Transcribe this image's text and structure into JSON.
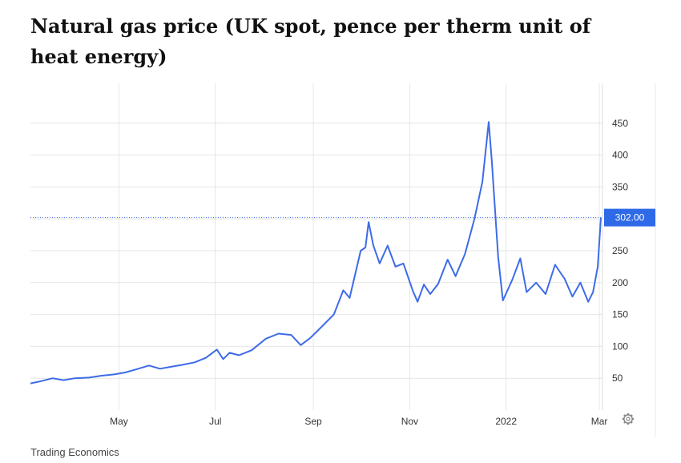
{
  "title": "Natural gas price (UK spot, pence per therm unit of heat energy)",
  "source": "Trading Economics",
  "colors": {
    "line": "#3d6be8",
    "last_label_bg": "#2e6ae8",
    "grid": "#e6e6e6",
    "ref_line": "#3d6be8"
  },
  "icons": {
    "settings": "gear-icon"
  },
  "chart_data": {
    "type": "line",
    "title": "Natural gas price (UK spot, pence per therm unit of heat energy)",
    "xlabel": "",
    "ylabel": "",
    "x_tick_labels": [
      "May",
      "Jul",
      "Sep",
      "Nov",
      "2022",
      "Mar"
    ],
    "y_ticks": [
      50,
      100,
      150,
      200,
      250,
      300,
      350,
      400,
      450
    ],
    "ylim": [
      0,
      500
    ],
    "xlim": [
      "2021-03-06",
      "2022-03-03"
    ],
    "grid": true,
    "axis_position": "right",
    "last_value": 302.0,
    "last_value_label": "302.00",
    "series": [
      {
        "points": [
          [
            "2021-03-06",
            42
          ],
          [
            "2021-03-12",
            45
          ],
          [
            "2021-03-20",
            50
          ],
          [
            "2021-03-27",
            47
          ],
          [
            "2021-04-03",
            50
          ],
          [
            "2021-04-12",
            51
          ],
          [
            "2021-04-20",
            54
          ],
          [
            "2021-04-28",
            56
          ],
          [
            "2021-05-05",
            59
          ],
          [
            "2021-05-12",
            64
          ],
          [
            "2021-05-20",
            70
          ],
          [
            "2021-05-27",
            65
          ],
          [
            "2021-06-03",
            68
          ],
          [
            "2021-06-10",
            71
          ],
          [
            "2021-06-18",
            75
          ],
          [
            "2021-06-25",
            82
          ],
          [
            "2021-07-02",
            95
          ],
          [
            "2021-07-06",
            80
          ],
          [
            "2021-07-10",
            90
          ],
          [
            "2021-07-16",
            86
          ],
          [
            "2021-07-24",
            94
          ],
          [
            "2021-08-02",
            112
          ],
          [
            "2021-08-10",
            120
          ],
          [
            "2021-08-18",
            118
          ],
          [
            "2021-08-24",
            102
          ],
          [
            "2021-08-30",
            113
          ],
          [
            "2021-09-06",
            130
          ],
          [
            "2021-09-14",
            150
          ],
          [
            "2021-09-20",
            188
          ],
          [
            "2021-09-24",
            176
          ],
          [
            "2021-10-01",
            250
          ],
          [
            "2021-10-04",
            255
          ],
          [
            "2021-10-06",
            295
          ],
          [
            "2021-10-09",
            258
          ],
          [
            "2021-10-13",
            230
          ],
          [
            "2021-10-18",
            258
          ],
          [
            "2021-10-23",
            225
          ],
          [
            "2021-10-28",
            230
          ],
          [
            "2021-11-03",
            187
          ],
          [
            "2021-11-06",
            170
          ],
          [
            "2021-11-10",
            197
          ],
          [
            "2021-11-14",
            182
          ],
          [
            "2021-11-19",
            198
          ],
          [
            "2021-11-25",
            236
          ],
          [
            "2021-11-30",
            210
          ],
          [
            "2021-12-06",
            245
          ],
          [
            "2021-12-12",
            300
          ],
          [
            "2021-12-17",
            358
          ],
          [
            "2021-12-21",
            452
          ],
          [
            "2021-12-23",
            390
          ],
          [
            "2021-12-27",
            240
          ],
          [
            "2021-12-30",
            172
          ],
          [
            "2022-01-05",
            205
          ],
          [
            "2022-01-10",
            238
          ],
          [
            "2022-01-14",
            185
          ],
          [
            "2022-01-20",
            200
          ],
          [
            "2022-01-26",
            182
          ],
          [
            "2022-02-01",
            228
          ],
          [
            "2022-02-07",
            206
          ],
          [
            "2022-02-12",
            178
          ],
          [
            "2022-02-17",
            200
          ],
          [
            "2022-02-22",
            170
          ],
          [
            "2022-02-25",
            185
          ],
          [
            "2022-02-28",
            225
          ],
          [
            "2022-03-02",
            302
          ]
        ]
      }
    ]
  }
}
